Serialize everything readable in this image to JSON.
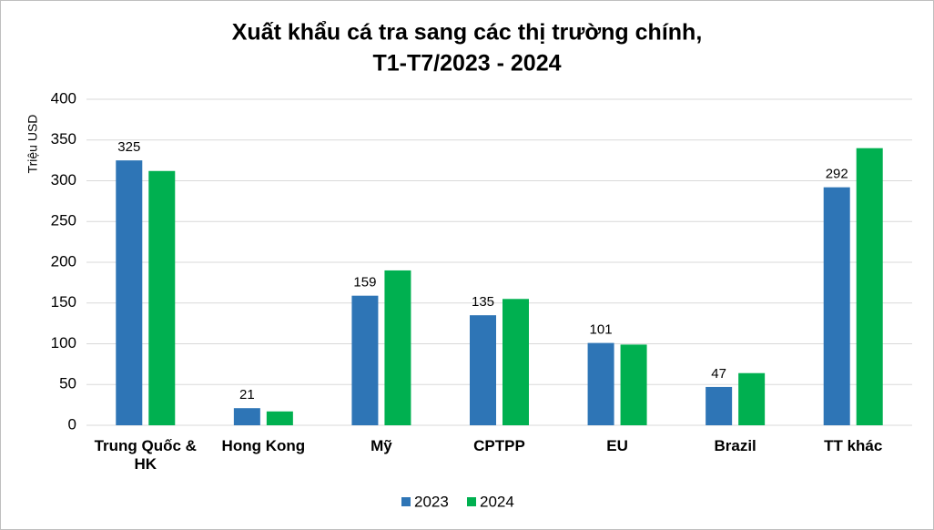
{
  "chart_data": {
    "type": "bar",
    "title": [
      "Xuất khẩu cá tra sang các thị trường chính,",
      "T1-T7/2023 - 2024"
    ],
    "y_label": "Triệu USD",
    "categories": [
      "Trung Quốc & HK",
      "Hong Kong",
      "Mỹ",
      "CPTPP",
      "EU",
      "Brazil",
      "TT khác"
    ],
    "series": [
      {
        "name": "2023",
        "color": "#2e75b6",
        "values": [
          325,
          21,
          159,
          135,
          101,
          47,
          292
        ],
        "show_labels": true
      },
      {
        "name": "2024",
        "color": "#00b050",
        "values": [
          312,
          17,
          190,
          155,
          99,
          64,
          340
        ],
        "show_labels": false
      }
    ],
    "ylim": [
      0,
      400
    ],
    "yticks": [
      0,
      50,
      100,
      150,
      200,
      250,
      300,
      350,
      400
    ],
    "grid": true,
    "legend": "bottom"
  }
}
